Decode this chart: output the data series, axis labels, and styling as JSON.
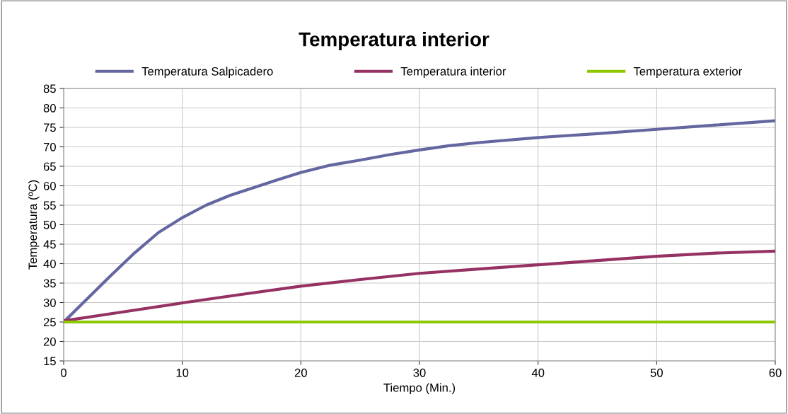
{
  "chart_data": {
    "type": "line",
    "title": "Temperatura interior",
    "xlabel": "Tiempo (Min.)",
    "ylabel": "Temperatura (ºC)",
    "xlim": [
      0,
      60
    ],
    "xticks": [
      0,
      10,
      20,
      30,
      40,
      50,
      60
    ],
    "ylim": [
      15,
      85
    ],
    "yticks": [
      15,
      20,
      25,
      30,
      35,
      40,
      45,
      50,
      55,
      60,
      65,
      70,
      75,
      80,
      85
    ],
    "grid": true,
    "legend": "top",
    "marker": "none",
    "line_style": "solid",
    "series": [
      {
        "name": "Temperatura Salpicadero",
        "color": "#6466a0",
        "x": [
          0,
          2,
          4,
          6,
          8,
          10,
          12,
          14,
          16,
          18,
          20,
          22.5,
          25,
          27.5,
          30,
          32.5,
          35,
          40,
          45,
          50,
          55,
          60
        ],
        "values": [
          25,
          31,
          37,
          42.8,
          48,
          51.8,
          55,
          57.5,
          59.5,
          61.5,
          63.4,
          65.3,
          66.6,
          68,
          69.2,
          70.3,
          71.1,
          72.4,
          73.4,
          74.5,
          75.6,
          76.7
        ]
      },
      {
        "name": "Temperatura interior",
        "color": "#953163",
        "x": [
          0,
          5,
          10,
          15,
          20,
          25,
          30,
          35,
          40,
          45,
          50,
          55,
          60
        ],
        "values": [
          25.3,
          27.6,
          29.9,
          32.1,
          34.2,
          35.9,
          37.5,
          38.6,
          39.7,
          40.8,
          41.9,
          42.7,
          43.2
        ]
      },
      {
        "name": "Temperatura exterior",
        "color": "#8cc800",
        "x": [
          0,
          60
        ],
        "values": [
          25,
          25
        ]
      }
    ]
  }
}
